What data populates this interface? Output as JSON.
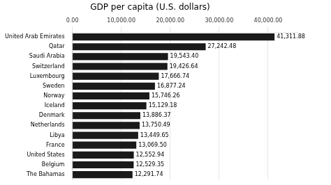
{
  "chart_data": {
    "type": "bar",
    "orientation": "horizontal",
    "title": "GDP per capita (U.S. dollars)",
    "categories": [
      "United Arab Emirates",
      "Qatar",
      "Saudi Arabia",
      "Switzerland",
      "Luxembourg",
      "Sweden",
      "Norway",
      "Iceland",
      "Denmark",
      "Netherlands",
      "Libya",
      "France",
      "United States",
      "Belgium",
      "The Bahamas"
    ],
    "values": [
      41311.88,
      27242.48,
      19543.4,
      19426.64,
      17666.74,
      16877.24,
      15746.26,
      15129.18,
      13886.37,
      13750.49,
      13449.65,
      13069.5,
      12552.94,
      12529.35,
      12291.74
    ],
    "value_labels": [
      "41,311.88",
      "27,242.48",
      "19,543.40",
      "19,426.64",
      "17,666.74",
      "16,877.24",
      "15,746.26",
      "15,129.18",
      "13,886.37",
      "13,750.49",
      "13,449.65",
      "13,069.50",
      "12,552.94",
      "12,529.35",
      "12,291.74"
    ],
    "data_labels": true,
    "color": "#1a1a1a",
    "xlim": [
      0,
      46000
    ],
    "xticks": [
      {
        "value": 0,
        "label": "0.00"
      },
      {
        "value": 10000,
        "label": "10,000.00"
      },
      {
        "value": 20000,
        "label": "20,000.00"
      },
      {
        "value": 30000,
        "label": "30,000.00"
      },
      {
        "value": 40000,
        "label": "40,000.00"
      }
    ],
    "grid": true
  }
}
